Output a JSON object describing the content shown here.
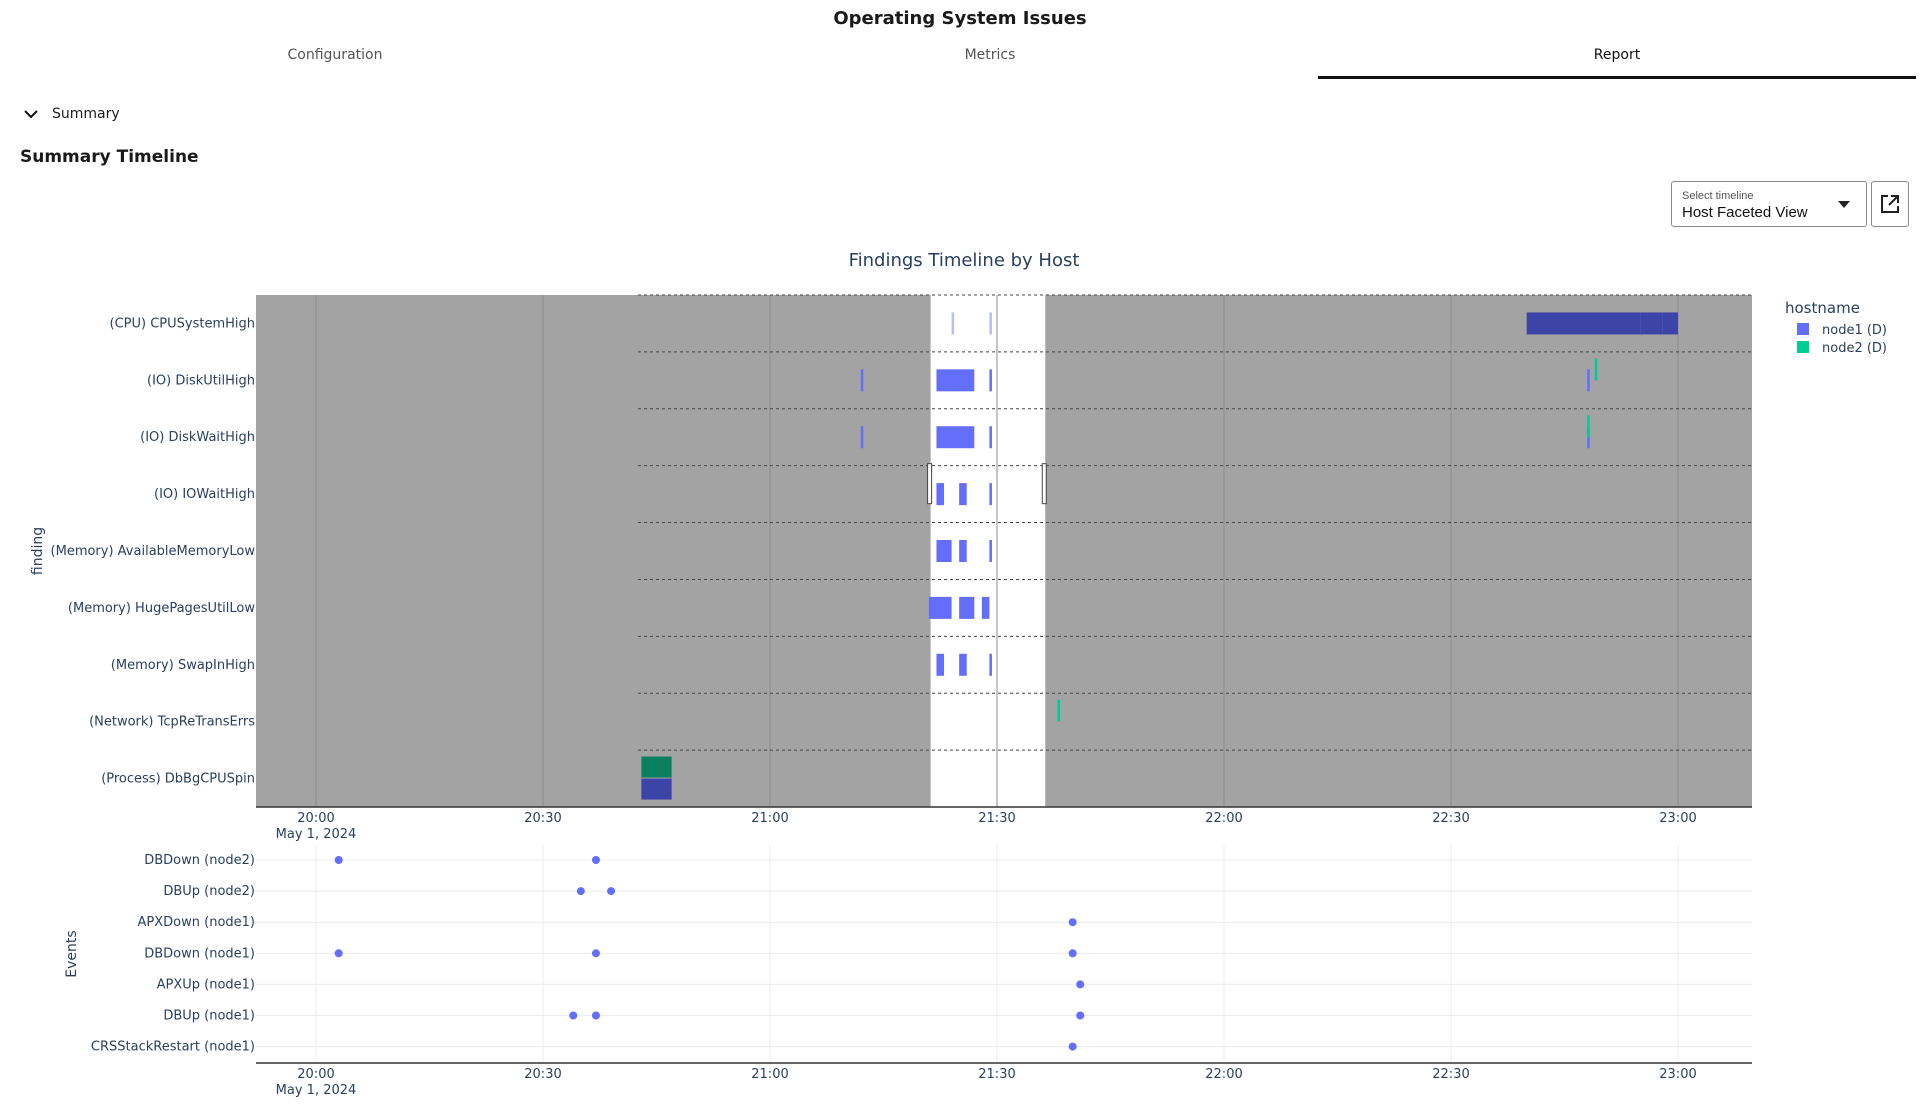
{
  "page": {
    "title": "Operating System Issues"
  },
  "tabs": [
    {
      "label": "Configuration",
      "active": false
    },
    {
      "label": "Metrics",
      "active": false
    },
    {
      "label": "Report",
      "active": true
    }
  ],
  "summary": {
    "toggle_label": "Summary",
    "section_title": "Summary Timeline"
  },
  "timeline_select": {
    "label": "Select timeline",
    "value": "Host Faceted View",
    "caret_icon": "caret-down-icon",
    "open_icon": "open-in-new-icon"
  },
  "chart_data": [
    {
      "type": "timeline",
      "title": "Findings Timeline by Host",
      "ylabel": "finding",
      "x_axis": {
        "ticks": [
          "20:00",
          "20:30",
          "21:00",
          "21:30",
          "22:00",
          "22:30",
          "23:00"
        ],
        "date_label": "May 1, 2024"
      },
      "legend": {
        "title": "hostname",
        "placement": "top-right",
        "items": [
          {
            "name": "node1 (D)",
            "color": "#636efa"
          },
          {
            "name": "node2 (D)",
            "color": "#00cc96"
          }
        ]
      },
      "categories": [
        "(CPU) CPUSystemHigh",
        "(IO) DiskUtilHigh",
        "(IO) DiskWaitHigh",
        "(IO) IOWaitHigh",
        "(Memory) AvailableMemoryLow",
        "(Memory) HugePagesUtilLow",
        "(Memory) SwapInHigh",
        "(Network) TcpReTransErrs",
        "(Process) DbBgCPUSpin"
      ],
      "highlight_window": [
        "21:24",
        "21:34"
      ],
      "bars": [
        {
          "finding": "(CPU) CPUSystemHigh",
          "host": "node1 (D)",
          "start": "21:24",
          "end": "21:24",
          "faint": true
        },
        {
          "finding": "(CPU) CPUSystemHigh",
          "host": "node1 (D)",
          "start": "21:29",
          "end": "21:29",
          "faint": true
        },
        {
          "finding": "(CPU) CPUSystemHigh",
          "host": "node1 (D)",
          "start": "22:40",
          "end": "22:55"
        },
        {
          "finding": "(CPU) CPUSystemHigh",
          "host": "node1 (D)",
          "start": "22:55",
          "end": "22:58"
        },
        {
          "finding": "(CPU) CPUSystemHigh",
          "host": "node1 (D)",
          "start": "22:58",
          "end": "23:00"
        },
        {
          "finding": "(IO) DiskUtilHigh",
          "host": "node1 (D)",
          "start": "21:12",
          "end": "21:12"
        },
        {
          "finding": "(IO) DiskUtilHigh",
          "host": "node1 (D)",
          "start": "21:22",
          "end": "21:27"
        },
        {
          "finding": "(IO) DiskUtilHigh",
          "host": "node1 (D)",
          "start": "21:29",
          "end": "21:29"
        },
        {
          "finding": "(IO) DiskUtilHigh",
          "host": "node1 (D)",
          "start": "22:48",
          "end": "22:48"
        },
        {
          "finding": "(IO) DiskUtilHigh",
          "host": "node2 (D)",
          "start": "22:49",
          "end": "22:49"
        },
        {
          "finding": "(IO) DiskWaitHigh",
          "host": "node1 (D)",
          "start": "21:12",
          "end": "21:12"
        },
        {
          "finding": "(IO) DiskWaitHigh",
          "host": "node1 (D)",
          "start": "21:22",
          "end": "21:27"
        },
        {
          "finding": "(IO) DiskWaitHigh",
          "host": "node1 (D)",
          "start": "21:29",
          "end": "21:29"
        },
        {
          "finding": "(IO) DiskWaitHigh",
          "host": "node1 (D)",
          "start": "22:48",
          "end": "22:48"
        },
        {
          "finding": "(IO) DiskWaitHigh",
          "host": "node2 (D)",
          "start": "22:48",
          "end": "22:48"
        },
        {
          "finding": "(IO) IOWaitHigh",
          "host": "node1 (D)",
          "start": "21:22",
          "end": "21:23"
        },
        {
          "finding": "(IO) IOWaitHigh",
          "host": "node1 (D)",
          "start": "21:25",
          "end": "21:26"
        },
        {
          "finding": "(IO) IOWaitHigh",
          "host": "node1 (D)",
          "start": "21:29",
          "end": "21:29"
        },
        {
          "finding": "(Memory) AvailableMemoryLow",
          "host": "node1 (D)",
          "start": "21:22",
          "end": "21:24"
        },
        {
          "finding": "(Memory) AvailableMemoryLow",
          "host": "node1 (D)",
          "start": "21:25",
          "end": "21:26"
        },
        {
          "finding": "(Memory) AvailableMemoryLow",
          "host": "node1 (D)",
          "start": "21:29",
          "end": "21:29"
        },
        {
          "finding": "(Memory) HugePagesUtilLow",
          "host": "node1 (D)",
          "start": "21:21",
          "end": "21:24"
        },
        {
          "finding": "(Memory) HugePagesUtilLow",
          "host": "node1 (D)",
          "start": "21:25",
          "end": "21:27"
        },
        {
          "finding": "(Memory) HugePagesUtilLow",
          "host": "node1 (D)",
          "start": "21:28",
          "end": "21:29"
        },
        {
          "finding": "(Memory) SwapInHigh",
          "host": "node1 (D)",
          "start": "21:22",
          "end": "21:23"
        },
        {
          "finding": "(Memory) SwapInHigh",
          "host": "node1 (D)",
          "start": "21:25",
          "end": "21:26"
        },
        {
          "finding": "(Memory) SwapInHigh",
          "host": "node1 (D)",
          "start": "21:29",
          "end": "21:29"
        },
        {
          "finding": "(Network) TcpReTransErrs",
          "host": "node2 (D)",
          "start": "21:38",
          "end": "21:38"
        },
        {
          "finding": "(Process) DbBgCPUSpin",
          "host": "node2 (D)",
          "start": "20:43",
          "end": "20:47"
        },
        {
          "finding": "(Process) DbBgCPUSpin",
          "host": "node1 (D)",
          "start": "20:43",
          "end": "20:47"
        }
      ]
    },
    {
      "type": "scatter",
      "ylabel": "Events",
      "x_axis": {
        "ticks": [
          "20:00",
          "20:30",
          "21:00",
          "21:30",
          "22:00",
          "22:30",
          "23:00"
        ],
        "date_label": "May 1, 2024"
      },
      "categories": [
        "DBDown (node2)",
        "DBUp (node2)",
        "APXDown (node1)",
        "DBDown (node1)",
        "APXUp (node1)",
        "DBUp (node1)",
        "CRSStackRestart (node1)"
      ],
      "points": [
        {
          "event": "DBDown (node2)",
          "time": "20:03"
        },
        {
          "event": "DBDown (node2)",
          "time": "20:37"
        },
        {
          "event": "DBUp (node2)",
          "time": "20:35"
        },
        {
          "event": "DBUp (node2)",
          "time": "20:39"
        },
        {
          "event": "APXDown (node1)",
          "time": "21:40"
        },
        {
          "event": "DBDown (node1)",
          "time": "20:03"
        },
        {
          "event": "DBDown (node1)",
          "time": "20:37"
        },
        {
          "event": "DBDown (node1)",
          "time": "21:40"
        },
        {
          "event": "APXUp (node1)",
          "time": "21:41"
        },
        {
          "event": "DBUp (node1)",
          "time": "20:34"
        },
        {
          "event": "DBUp (node1)",
          "time": "20:37"
        },
        {
          "event": "DBUp (node1)",
          "time": "21:41"
        },
        {
          "event": "CRSStackRestart (node1)",
          "time": "21:40"
        }
      ]
    }
  ]
}
